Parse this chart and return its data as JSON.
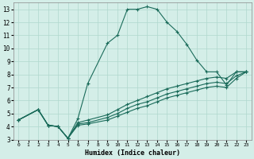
{
  "xlabel": "Humidex (Indice chaleur)",
  "background_color": "#d4eee8",
  "line_color": "#1a6b5a",
  "grid_color": "#b0d8ce",
  "xlim": [
    -0.5,
    23.5
  ],
  "ylim": [
    3,
    13.5
  ],
  "xticks": [
    0,
    1,
    2,
    3,
    4,
    5,
    6,
    7,
    8,
    9,
    10,
    11,
    12,
    13,
    14,
    15,
    16,
    17,
    18,
    19,
    20,
    21,
    22,
    23
  ],
  "yticks": [
    3,
    4,
    5,
    6,
    7,
    8,
    9,
    10,
    11,
    12,
    13
  ],
  "lines": [
    {
      "x": [
        0,
        2,
        3,
        4,
        5,
        6,
        7,
        9,
        10,
        11,
        12,
        13,
        14,
        15,
        16,
        17,
        18,
        19,
        20,
        21,
        22,
        23
      ],
      "y": [
        4.5,
        5.3,
        4.1,
        4.0,
        3.1,
        4.6,
        7.3,
        10.4,
        11.0,
        13.0,
        13.0,
        13.2,
        13.0,
        12.0,
        11.3,
        10.3,
        9.1,
        8.2,
        8.2,
        7.2,
        8.2,
        8.2
      ]
    },
    {
      "x": [
        0,
        2,
        3,
        4,
        5,
        6,
        7,
        9,
        10,
        11,
        12,
        13,
        14,
        15,
        16,
        17,
        18,
        19,
        20,
        21,
        22,
        23
      ],
      "y": [
        4.5,
        5.3,
        4.1,
        4.0,
        3.1,
        4.3,
        4.5,
        4.9,
        5.3,
        5.7,
        6.0,
        6.3,
        6.6,
        6.9,
        7.1,
        7.3,
        7.5,
        7.7,
        7.8,
        7.7,
        8.2,
        8.2
      ]
    },
    {
      "x": [
        0,
        2,
        3,
        4,
        5,
        6,
        7,
        9,
        10,
        11,
        12,
        13,
        14,
        15,
        16,
        17,
        18,
        19,
        20,
        21,
        22,
        23
      ],
      "y": [
        4.5,
        5.3,
        4.1,
        4.0,
        3.1,
        4.2,
        4.3,
        4.7,
        5.0,
        5.4,
        5.7,
        5.9,
        6.2,
        6.5,
        6.7,
        6.9,
        7.1,
        7.3,
        7.4,
        7.3,
        7.9,
        8.2
      ]
    },
    {
      "x": [
        0,
        2,
        3,
        4,
        5,
        6,
        7,
        9,
        10,
        11,
        12,
        13,
        14,
        15,
        16,
        17,
        18,
        19,
        20,
        21,
        22,
        23
      ],
      "y": [
        4.5,
        5.3,
        4.1,
        4.0,
        3.1,
        4.1,
        4.2,
        4.5,
        4.8,
        5.1,
        5.4,
        5.6,
        5.9,
        6.2,
        6.4,
        6.6,
        6.8,
        7.0,
        7.1,
        7.0,
        7.7,
        8.2
      ]
    }
  ]
}
